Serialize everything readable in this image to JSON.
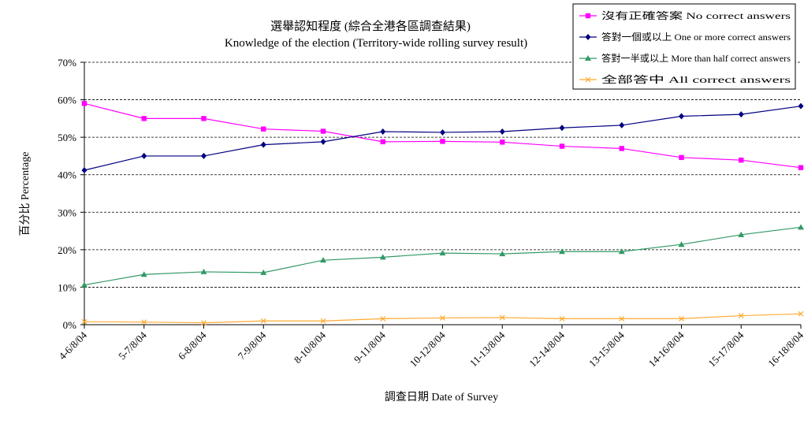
{
  "chart_data": {
    "type": "line",
    "title": "選舉認知程度 (綜合全港各區調查結果)",
    "subtitle": "Knowledge of the election (Territory-wide rolling survey result)",
    "xlabel": "調查日期 Date of Survey",
    "ylabel": "百分比 Percentage",
    "ylim": [
      0,
      70
    ],
    "yticks": [
      "0%",
      "10%",
      "20%",
      "30%",
      "40%",
      "50%",
      "60%",
      "70%"
    ],
    "grid": true,
    "legend_position": "top-right",
    "categories": [
      "4-6/8/04",
      "5-7/8/04",
      "6-8/8/04",
      "7-9/8/04",
      "8-10/8/04",
      "9-11/8/04",
      "10-12/8/04",
      "11-13/8/04",
      "12-14/8/04",
      "13-15/8/04",
      "14-16/8/04",
      "15-17/8/04",
      "16-18/8/04"
    ],
    "series": [
      {
        "name": "沒有正確答案 No correct answers",
        "color": "#ff00ff",
        "marker": "square",
        "values": [
          59,
          55,
          55,
          52.2,
          51.6,
          48.8,
          48.9,
          48.7,
          47.6,
          47,
          44.6,
          43.9,
          41.9
        ]
      },
      {
        "name": "答對一個或以上 One or more correct answers",
        "color": "#000080",
        "marker": "diamond",
        "values": [
          41.2,
          45,
          45,
          48,
          48.8,
          51.5,
          51.3,
          51.5,
          52.5,
          53.2,
          55.6,
          56.1,
          58.3
        ]
      },
      {
        "name": "答對一半或以上 More than half correct answers",
        "color": "#339966",
        "marker": "triangle",
        "values": [
          10.6,
          13.4,
          14.1,
          13.9,
          17.2,
          18,
          19.1,
          18.9,
          19.5,
          19.5,
          21.4,
          24,
          26
        ]
      },
      {
        "name": "全部答中 All correct answers",
        "color": "#ffaa33",
        "marker": "x",
        "values": [
          0.8,
          0.7,
          0.5,
          1,
          1,
          1.6,
          1.8,
          1.9,
          1.6,
          1.6,
          1.6,
          2.4,
          2.9
        ]
      }
    ]
  }
}
